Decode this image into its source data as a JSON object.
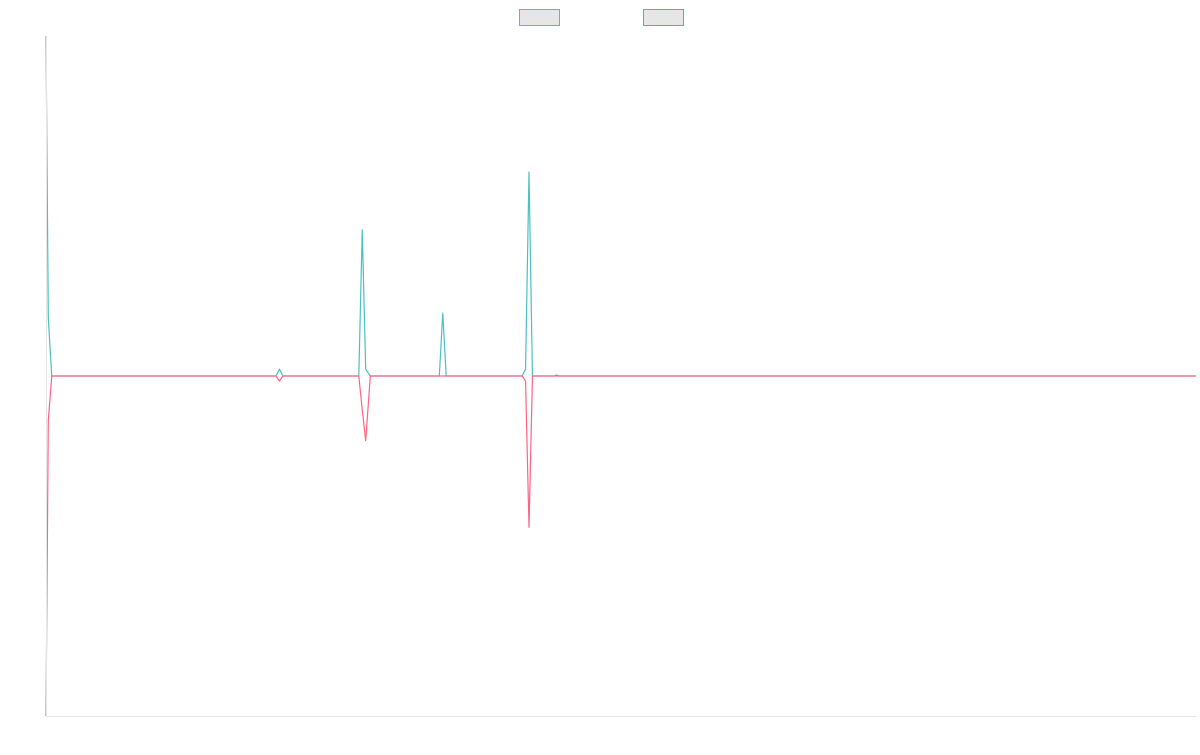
{
  "chart_data": {
    "type": "line",
    "title": "",
    "xlabel": "",
    "ylabel": "",
    "grid": false,
    "legend_position": "top-center",
    "series": [
      {
        "name": "",
        "color": "#4bc0c0",
        "fill": "#e6e6e6",
        "points": [
          [
            0,
            100
          ],
          [
            0.2,
            17
          ],
          [
            0.5,
            0
          ],
          [
            20,
            0
          ],
          [
            20.3,
            2
          ],
          [
            20.6,
            0
          ],
          [
            27.2,
            0
          ],
          [
            27.5,
            43
          ],
          [
            27.8,
            2
          ],
          [
            28.2,
            0
          ],
          [
            34.2,
            0
          ],
          [
            34.5,
            18.5
          ],
          [
            34.8,
            0
          ],
          [
            41.4,
            0
          ],
          [
            41.7,
            2
          ],
          [
            42,
            60
          ],
          [
            42.3,
            0
          ],
          [
            44.2,
            0
          ],
          [
            44.4,
            0.3
          ],
          [
            44.6,
            0
          ],
          [
            100,
            0
          ]
        ]
      },
      {
        "name": "",
        "color": "#ff6384",
        "fill": "#e6e6e6",
        "points": [
          [
            0,
            -100
          ],
          [
            0.2,
            -13
          ],
          [
            0.5,
            0
          ],
          [
            20,
            0
          ],
          [
            20.3,
            -1.5
          ],
          [
            20.6,
            0
          ],
          [
            27.2,
            0
          ],
          [
            27.5,
            -10
          ],
          [
            27.8,
            -19
          ],
          [
            28.2,
            0
          ],
          [
            41.4,
            0
          ],
          [
            41.7,
            -1.5
          ],
          [
            42,
            -44.5
          ],
          [
            42.3,
            0
          ],
          [
            100,
            0
          ]
        ]
      }
    ],
    "xlim": [
      0,
      100
    ],
    "ylim": [
      -100,
      100
    ]
  }
}
